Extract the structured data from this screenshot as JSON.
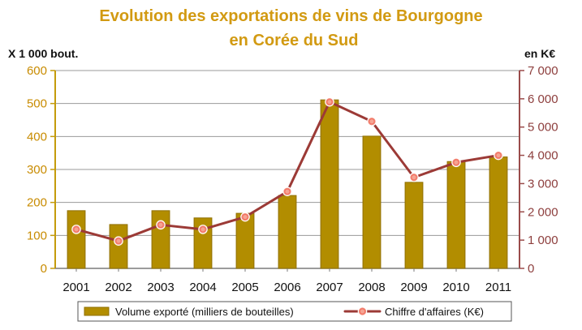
{
  "chart_data": {
    "type": "bar",
    "title_line1": "Evolution des exportations de vins de Bourgogne",
    "title_line2": "en Corée du Sud",
    "left_unit": "X 1 000 bout.",
    "right_unit": "en K€",
    "categories": [
      "2001",
      "2002",
      "2003",
      "2004",
      "2005",
      "2006",
      "2007",
      "2008",
      "2009",
      "2010",
      "2011"
    ],
    "series": [
      {
        "name": "Volume exporté (milliers de bouteilles)",
        "type": "bar",
        "axis": "left",
        "values": [
          175,
          133,
          175,
          153,
          167,
          221,
          511,
          401,
          261,
          324,
          338
        ],
        "color": "#b28d00"
      },
      {
        "name": "Chiffre d'affaires (K€)",
        "type": "line",
        "axis": "right",
        "values": [
          1380,
          970,
          1540,
          1380,
          1820,
          2720,
          5890,
          5200,
          3220,
          3750,
          4000
        ],
        "color": "#9c3a36",
        "marker_color": "#f38b7a"
      }
    ],
    "left_axis": {
      "ylim": [
        0,
        600
      ],
      "ticks": [
        "0",
        "100",
        "200",
        "300",
        "400",
        "500",
        "600"
      ]
    },
    "right_axis": {
      "ylim": [
        0,
        7000
      ],
      "ticks": [
        "0",
        "1 000",
        "2 000",
        "3 000",
        "4 000",
        "5 000",
        "6 000",
        "7 000"
      ]
    },
    "grid": true,
    "legend_position": "bottom"
  }
}
